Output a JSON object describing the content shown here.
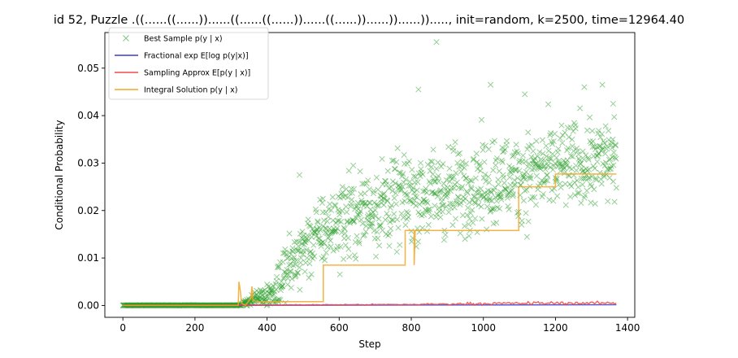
{
  "chart_data": {
    "type": "scatter",
    "title": "id 52, Puzzle .((......((......))......((......((......))......((......))......))......))....., init=random, k=2500, time=12964.40",
    "xlabel": "Step",
    "ylabel": "Conditional Probability",
    "xlim": [
      -50,
      1420
    ],
    "ylim": [
      -0.0025,
      0.0575
    ],
    "xticks": [
      0,
      200,
      400,
      600,
      800,
      1000,
      1200,
      1400
    ],
    "xtick_labels": [
      "0",
      "200",
      "400",
      "600",
      "800",
      "1000",
      "1200",
      "1400"
    ],
    "yticks": [
      0.0,
      0.01,
      0.02,
      0.03,
      0.04,
      0.05
    ],
    "ytick_labels": [
      "0.00",
      "0.01",
      "0.02",
      "0.03",
      "0.04",
      "0.05"
    ],
    "grid": false,
    "legend_position": "top-left",
    "series": [
      {
        "name": "Best Sample p(y | x)",
        "kind": "scatter",
        "marker": "x",
        "color": "#2ca02c",
        "trend": [
          [
            0,
            0.0
          ],
          [
            320,
            0.0
          ],
          [
            420,
            0.003
          ],
          [
            500,
            0.012
          ],
          [
            600,
            0.018
          ],
          [
            700,
            0.021
          ],
          [
            800,
            0.023
          ],
          [
            900,
            0.024
          ],
          [
            1000,
            0.026
          ],
          [
            1100,
            0.027
          ],
          [
            1200,
            0.029
          ],
          [
            1300,
            0.03
          ],
          [
            1369,
            0.031
          ]
        ],
        "notable_points": [
          [
            870,
            0.0555
          ],
          [
            1020,
            0.0465
          ],
          [
            1115,
            0.0445
          ],
          [
            1280,
            0.046
          ],
          [
            1330,
            0.0465
          ],
          [
            820,
            0.0455
          ],
          [
            1360,
            0.0425
          ],
          [
            490,
            0.0275
          ],
          [
            555,
            0.0225
          ]
        ]
      },
      {
        "name": "Fractional exp E[log p(y|x)]",
        "kind": "line",
        "color": "#3b3bc9",
        "values": [
          [
            0,
            0.0
          ],
          [
            1369,
            0.00015
          ]
        ]
      },
      {
        "name": "Sampling Approx E[p(y | x)]",
        "kind": "line",
        "color": "#ef4a4a",
        "values": [
          [
            0,
            0.0
          ],
          [
            400,
            0.0001
          ],
          [
            800,
            0.0002
          ],
          [
            1000,
            0.0004
          ],
          [
            1200,
            0.0005
          ],
          [
            1369,
            0.0005
          ]
        ]
      },
      {
        "name": "Integral Solution p(y | x)",
        "kind": "line",
        "color": "#f5a623",
        "values": [
          [
            0,
            0.0
          ],
          [
            320,
            0.0
          ],
          [
            322,
            0.005
          ],
          [
            326,
            0.003
          ],
          [
            329,
            0.0005
          ],
          [
            340,
            0.0
          ],
          [
            355,
            0.0015
          ],
          [
            358,
            0.004
          ],
          [
            361,
            0.001
          ],
          [
            380,
            0.0008
          ],
          [
            556,
            0.0008
          ],
          [
            556,
            0.0085
          ],
          [
            783,
            0.0085
          ],
          [
            783,
            0.0158
          ],
          [
            808,
            0.0158
          ],
          [
            808,
            0.0085
          ],
          [
            811,
            0.0158
          ],
          [
            1098,
            0.0158
          ],
          [
            1098,
            0.025
          ],
          [
            1200,
            0.025
          ],
          [
            1200,
            0.0277
          ],
          [
            1369,
            0.0277
          ]
        ]
      }
    ]
  }
}
